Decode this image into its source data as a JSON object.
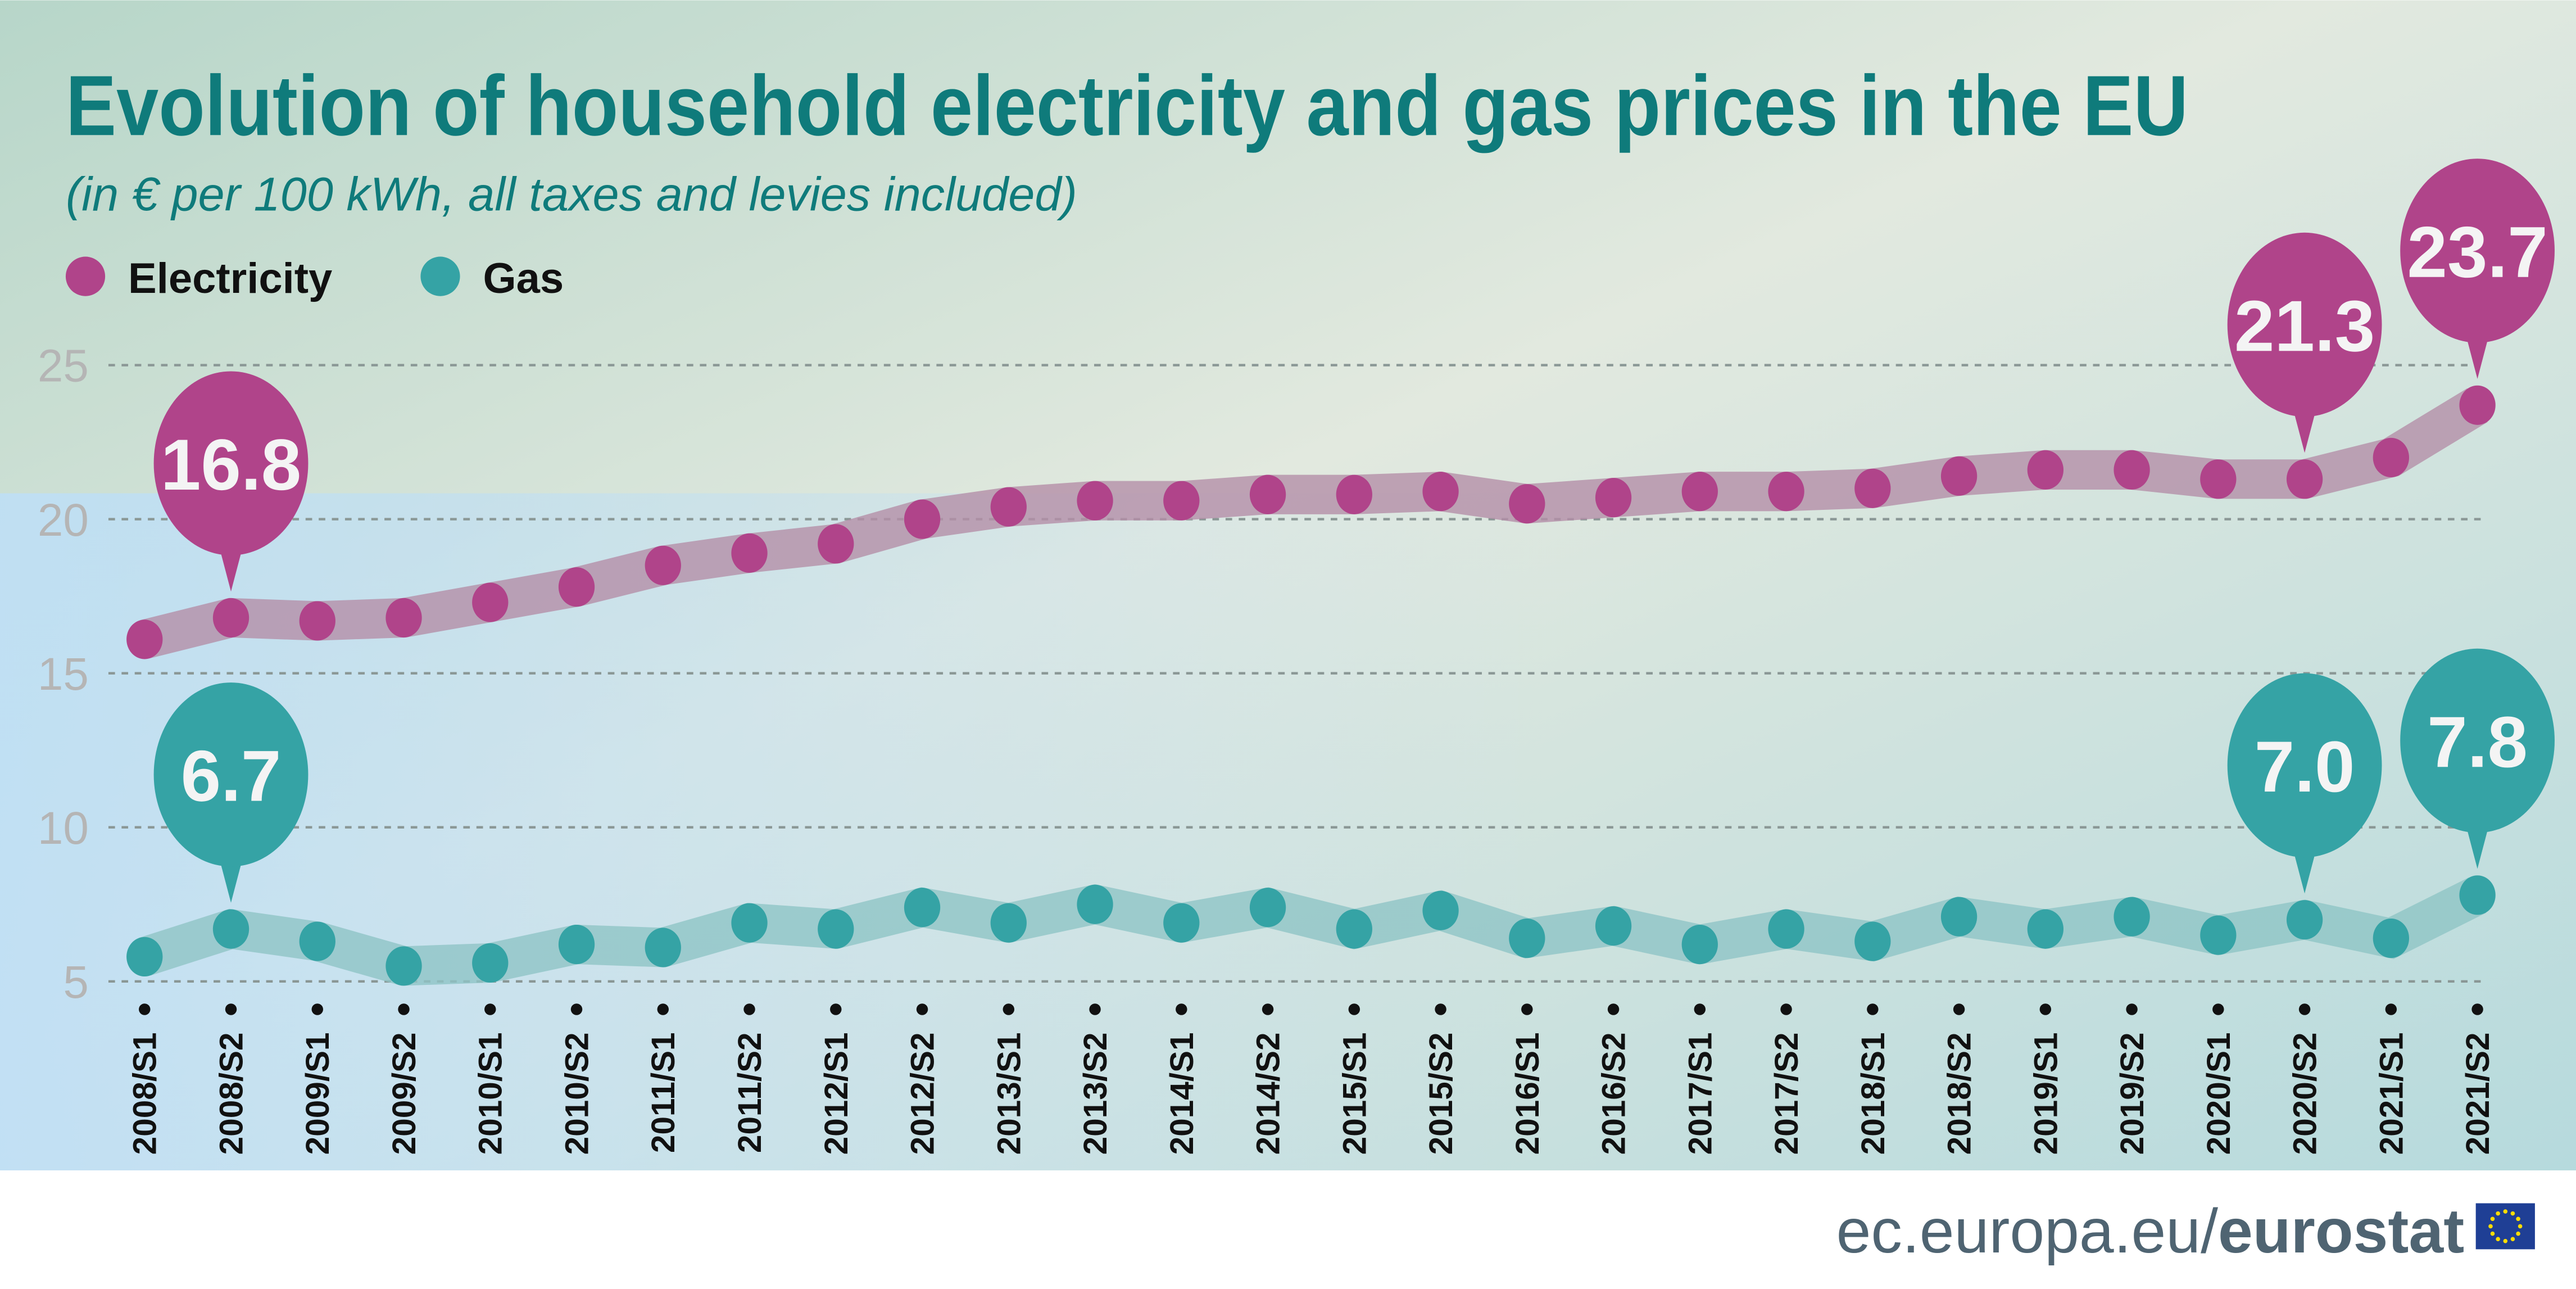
{
  "chart_data": {
    "type": "line",
    "title": "Evolution of household electricity and gas prices in the EU",
    "subtitle": "(in € per 100 kWh, all taxes and levies included)",
    "x": [
      "2008/S1",
      "2008/S2",
      "2009/S1",
      "2009/S2",
      "2010/S1",
      "2010/S2",
      "2011/S1",
      "2011/S2",
      "2012/S1",
      "2012/S2",
      "2013/S1",
      "2013/S2",
      "2014/S1",
      "2014/S2",
      "2015/S1",
      "2015/S2",
      "2016/S1",
      "2016/S2",
      "2017/S1",
      "2017/S2",
      "2018/S1",
      "2018/S2",
      "2019/S1",
      "2019/S2",
      "2020/S1",
      "2020/S2",
      "2021/S1",
      "2021/S2"
    ],
    "yticks": [
      5,
      10,
      15,
      20,
      25
    ],
    "ylim": [
      5,
      25
    ],
    "grid": "horizontal dashed",
    "legend_position": "top-left",
    "series": [
      {
        "name": "Electricity",
        "color": "#b0448a",
        "values": [
          16.1,
          16.8,
          16.7,
          16.8,
          17.3,
          17.8,
          18.5,
          18.9,
          19.2,
          20.0,
          20.4,
          20.6,
          20.6,
          20.8,
          20.8,
          20.9,
          20.5,
          20.7,
          20.9,
          20.9,
          21.0,
          21.4,
          21.6,
          21.6,
          21.3,
          21.3,
          22.0,
          23.7
        ],
        "callouts": [
          {
            "index": 1,
            "label": "16.8"
          },
          {
            "index": 25,
            "label": "21.3"
          },
          {
            "index": 27,
            "label": "23.7"
          }
        ]
      },
      {
        "name": "Gas",
        "color": "#35a3a5",
        "values": [
          5.8,
          6.7,
          6.3,
          5.5,
          5.6,
          6.2,
          6.1,
          6.9,
          6.7,
          7.4,
          6.9,
          7.5,
          6.9,
          7.4,
          6.7,
          7.3,
          6.4,
          6.8,
          6.2,
          6.7,
          6.3,
          7.1,
          6.7,
          7.1,
          6.5,
          7.0,
          6.4,
          7.8
        ],
        "callouts": [
          {
            "index": 1,
            "label": "6.7"
          },
          {
            "index": 25,
            "label": "7.0"
          },
          {
            "index": 27,
            "label": "7.8"
          }
        ]
      }
    ]
  },
  "footer": {
    "site": "ec.europa.eu/",
    "brand": "eurostat"
  }
}
